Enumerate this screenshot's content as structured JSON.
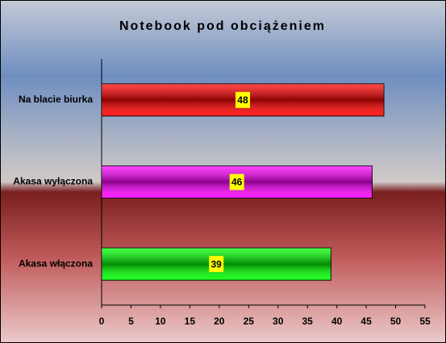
{
  "chart_data": {
    "type": "barh",
    "title": "Notebook pod obciążeniem",
    "categories": [
      "Na blacie biurka",
      "Akasa wyłączona",
      "Akasa włączona"
    ],
    "values": [
      48,
      46,
      39
    ],
    "colors": [
      "#ff0000",
      "#ff00ff",
      "#00ff00"
    ],
    "xlim": [
      0,
      55
    ],
    "xticks": [
      0,
      5,
      10,
      15,
      20,
      25,
      30,
      35,
      40,
      45,
      50,
      55
    ]
  }
}
